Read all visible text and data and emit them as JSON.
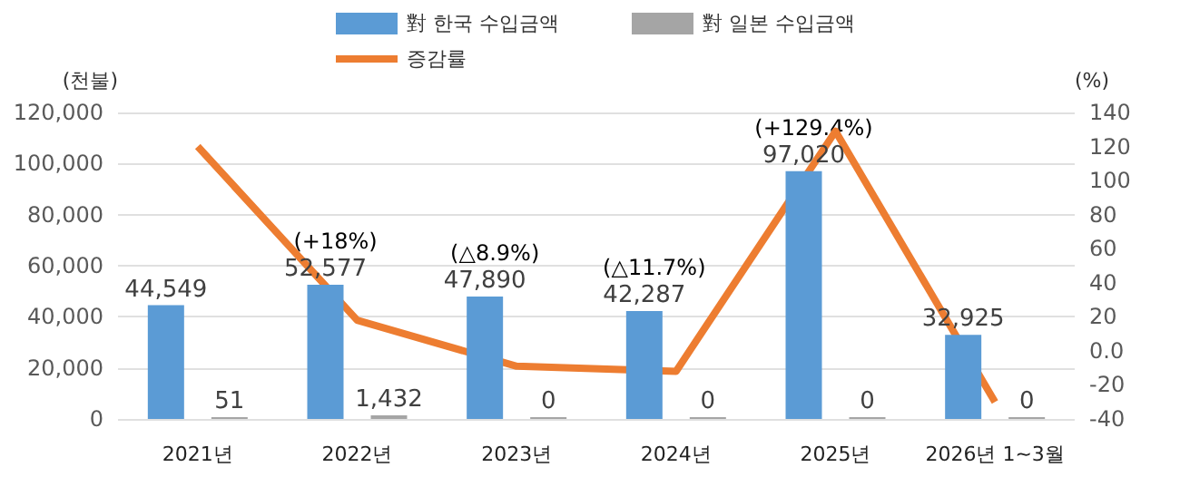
{
  "chart_data": {
    "type": "bar",
    "categories": [
      "2021년",
      "2022년",
      "2023년",
      "2024년",
      "2025년",
      "2026년 1~3월"
    ],
    "ylabel": "(천불)",
    "y2label": "(%)",
    "series": [
      {
        "name": "對 한국 수입금액",
        "color": "#5b9bd5",
        "values": [
          44549,
          52577,
          47890,
          42287,
          97020,
          32925
        ],
        "value_labels": [
          "44,549",
          "52,577",
          "47,890",
          "42,287",
          "97,020",
          "32,925"
        ]
      },
      {
        "name": "對 일본 수입금액",
        "color": "#a5a5a5",
        "values": [
          51,
          1432,
          0,
          0,
          0,
          0
        ],
        "value_labels": [
          "51",
          "1,432",
          "0",
          "0",
          "0",
          "0"
        ]
      },
      {
        "name": "증감률",
        "type": "line",
        "axis": "y2",
        "color": "#ed7d31",
        "values": [
          120,
          18,
          -9,
          -12,
          129,
          -30
        ]
      }
    ],
    "ylim": [
      0,
      120000
    ],
    "yticks": [
      0,
      {
        "value": 20000,
        "label": "20,000"
      },
      {
        "value": 40000,
        "label": "40,000"
      },
      {
        "value": 60000,
        "label": "60,000"
      },
      {
        "value": 80000,
        "label": "80,000"
      },
      {
        "value": 100000,
        "label": "100,000"
      },
      {
        "value": 120000,
        "label": "120,000"
      }
    ],
    "y2lim": [
      -40,
      140
    ],
    "y2ticks": [
      -40,
      -20,
      {
        "value": 0,
        "label": "0.0"
      },
      20,
      40,
      60,
      80,
      100,
      120,
      140
    ],
    "annotations": [
      "(+18%)",
      "(△8.9%)",
      "(△11.7%)",
      "(+129.4%)"
    ],
    "grid": "y",
    "legend": "top",
    "marker": "none"
  }
}
